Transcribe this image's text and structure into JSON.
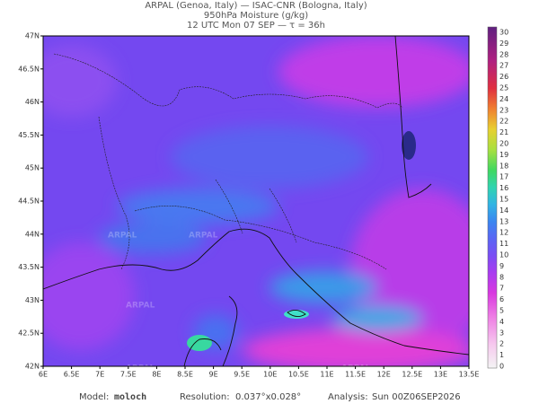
{
  "header": {
    "line1": "ARPAL (Genoa, Italy)  —  ISAC-CNR (Bologna, Italy)",
    "line2": "950hPa Moisture (g/kg)",
    "line3": "12 UTC Mon 07 SEP  —  τ = 36h"
  },
  "map": {
    "lat_labels": [
      "47N",
      "46.5N",
      "46N",
      "45.5N",
      "45N",
      "44.5N",
      "44N",
      "43.5N",
      "43N",
      "42.5N",
      "42N"
    ],
    "lon_labels": [
      "6E",
      "6.5E",
      "7E",
      "7.5E",
      "8E",
      "8.5E",
      "9E",
      "9.5E",
      "10E",
      "10.5E",
      "11E",
      "11.5E",
      "12E",
      "12.5E",
      "13E",
      "13.5E"
    ],
    "watermark": "ARPAL"
  },
  "colorbar": {
    "labels": [
      "0",
      "1",
      "2",
      "3",
      "4",
      "5",
      "6",
      "7",
      "8",
      "9",
      "10",
      "11",
      "12",
      "13",
      "14",
      "15",
      "16",
      "17",
      "18",
      "19",
      "20",
      "21",
      "22",
      "23",
      "24",
      "25",
      "26",
      "27",
      "28",
      "29",
      "30"
    ]
  },
  "footer": {
    "model_label": "Model:",
    "model": "moloch",
    "resolution_label": "Resolution:",
    "resolution": "0.037°x0.028°",
    "analysis_label": "Analysis:",
    "analysis": "Sun 00Z06SEP2026"
  }
}
